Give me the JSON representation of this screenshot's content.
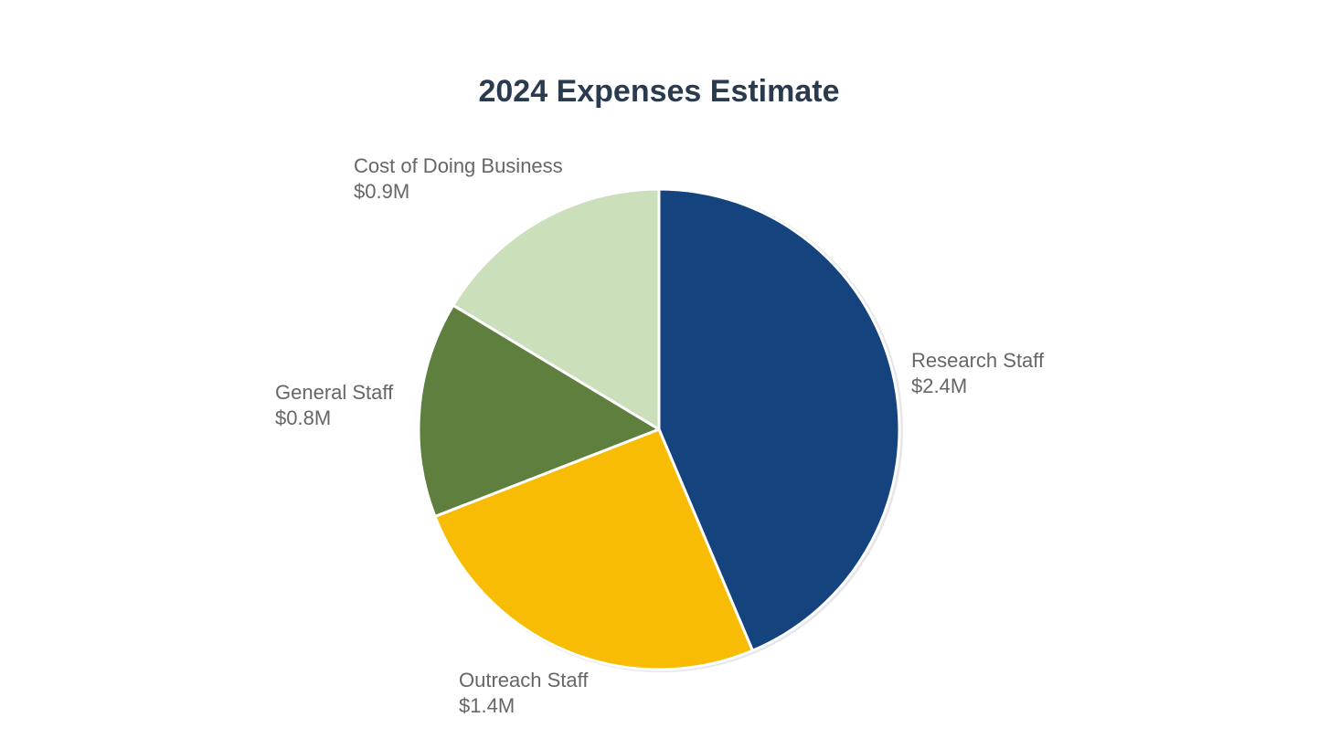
{
  "chart_data": {
    "type": "pie",
    "title": "2024 Expenses Estimate",
    "unit_prefix": "$",
    "unit_suffix": "M",
    "start_angle_deg": 0,
    "direction": "clockwise",
    "slices": [
      {
        "name": "Research Staff",
        "value": 2.4,
        "value_label": "$2.4M",
        "color": "#15437d"
      },
      {
        "name": "Outreach Staff",
        "value": 1.4,
        "value_label": "$1.4M",
        "color": "#f8bc05"
      },
      {
        "name": "General Staff",
        "value": 0.8,
        "value_label": "$0.8M",
        "color": "#5e7f3e"
      },
      {
        "name": "Cost of Doing Business",
        "value": 0.9,
        "value_label": "$0.9M",
        "color": "#cbdfbb"
      }
    ],
    "legend": "none",
    "slice_border_color": "#ffffff"
  }
}
